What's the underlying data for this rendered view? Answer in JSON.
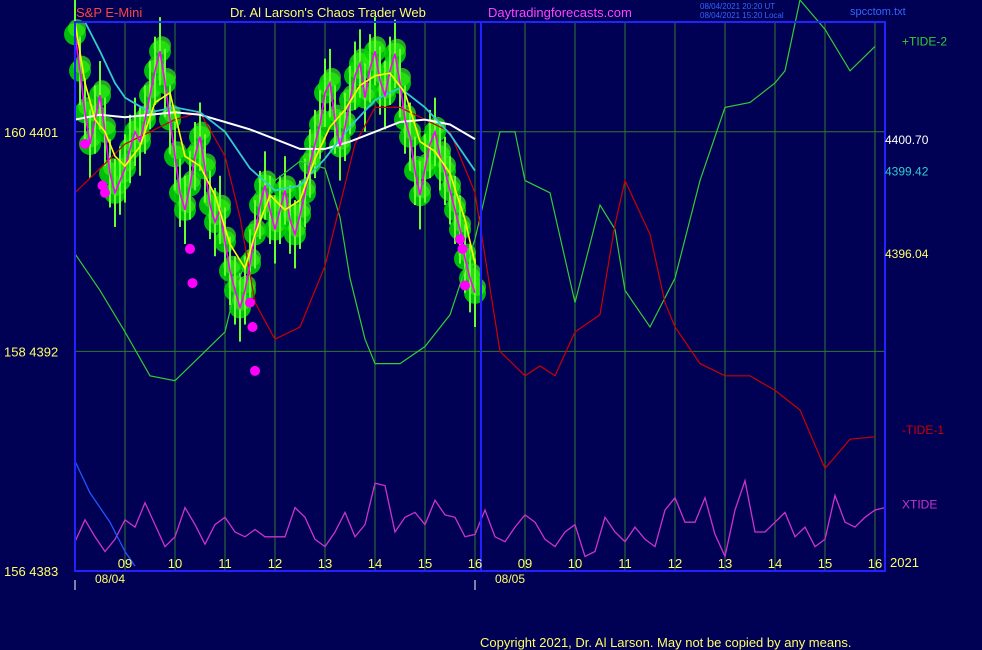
{
  "header": {
    "symbol": "S&P E-Mini",
    "title": "Dr. Al Larson's Chaos Trader Web",
    "site": "Daytradingforecasts.com",
    "stamp_line1": "08/04/2021 20:20 UT",
    "stamp_line2": "08/04/2021 15:20 Local",
    "filename": "spcctom.txt"
  },
  "footer": {
    "copyright": "Copyright 2021, Dr. Al Larson. May not be copied by any means."
  },
  "chart_data": {
    "type": "line",
    "colors": {
      "background": "#000055",
      "frame": "#2222ff",
      "grid": "#2e7a2e",
      "price": "#ff00ff",
      "fast_ma": "#ffff00",
      "mid_ma": "#33cccc",
      "slow_ma": "#ffffff",
      "tide_plus": "#33cc33",
      "tide_minus": "#cc0000",
      "xtide": "#cc33cc",
      "markers": "#ff00ff",
      "bands": "#00cc00",
      "tick_labels": "#ffff66"
    },
    "y_axis": {
      "ticks": [
        {
          "value": 4401,
          "label": "160  4401"
        },
        {
          "value": 4392,
          "label": "158  4392"
        },
        {
          "value": 4383,
          "label": "156  4383"
        }
      ],
      "ylim": [
        4383,
        4405.5
      ]
    },
    "x_axis": {
      "hour_labels": [
        "09",
        "10",
        "11",
        "12",
        "13",
        "14",
        "15",
        "16",
        "09",
        "10",
        "11",
        "12",
        "13",
        "14",
        "15",
        "16"
      ],
      "date_labels": [
        "08/04",
        "08/05"
      ],
      "year_label": "2021",
      "session_start_index": 8
    },
    "price_levels": [
      {
        "label": "4400.70",
        "value": 4400.7,
        "color": "#ffffff"
      },
      {
        "label": "4399.42",
        "value": 4399.42,
        "color": "#33cccc"
      },
      {
        "label": "4396.04",
        "value": 4396.04,
        "color": "#ffff66"
      }
    ],
    "series_labels": [
      {
        "label": "+TIDE-2",
        "color": "#33cc33"
      },
      {
        "label": "-TIDE-1",
        "color": "#cc0000"
      },
      {
        "label": "XTIDE",
        "color": "#cc33cc"
      }
    ],
    "x_range_hours": [
      8.0,
      24.2
    ],
    "price_series": {
      "x": [
        8.0,
        8.1,
        8.2,
        8.3,
        8.4,
        8.5,
        8.6,
        8.7,
        8.8,
        8.9,
        9.0,
        9.1,
        9.2,
        9.3,
        9.4,
        9.5,
        9.6,
        9.7,
        9.8,
        9.9,
        10.0,
        10.1,
        10.2,
        10.3,
        10.4,
        10.5,
        10.6,
        10.7,
        10.8,
        10.9,
        11.0,
        11.1,
        11.2,
        11.3,
        11.4,
        11.5,
        11.6,
        11.7,
        11.8,
        11.9,
        12.0,
        12.1,
        12.2,
        12.3,
        12.4,
        12.5,
        12.6,
        12.7,
        12.8,
        12.9,
        13.0,
        13.1,
        13.2,
        13.3,
        13.4,
        13.5,
        13.6,
        13.7,
        13.8,
        13.9,
        14.0,
        14.1,
        14.2,
        14.3,
        14.4,
        14.5,
        14.6,
        14.7,
        14.8,
        14.9,
        15.0,
        15.1,
        15.2,
        15.3,
        15.4,
        15.5,
        15.6,
        15.7,
        15.8,
        15.9,
        16.0
      ],
      "y": [
        4405,
        4403.5,
        4401.8,
        4400.5,
        4401.5,
        4402.5,
        4401.0,
        4399.3,
        4398.5,
        4399.0,
        4399.5,
        4400.3,
        4401.0,
        4400.6,
        4401.5,
        4402.5,
        4403.5,
        4404.3,
        4403.0,
        4401.5,
        4400.0,
        4398.5,
        4397.8,
        4398.8,
        4400.0,
        4400.8,
        4399.5,
        4398.0,
        4397.3,
        4397.8,
        4396.5,
        4395.3,
        4394.5,
        4393.8,
        4394.5,
        4395.6,
        4396.8,
        4398.0,
        4398.8,
        4397.8,
        4397.0,
        4397.8,
        4398.6,
        4397.4,
        4396.8,
        4397.6,
        4398.5,
        4399.7,
        4400.5,
        4401.3,
        4402.6,
        4403.0,
        4401.5,
        4400.4,
        4401.2,
        4402.3,
        4403.3,
        4403.8,
        4402.4,
        4403.6,
        4404.3,
        4403.1,
        4402.5,
        4403.5,
        4404.2,
        4403.0,
        4401.5,
        4400.8,
        4399.4,
        4398.4,
        4399.5,
        4400.5,
        4401.0,
        4400.0,
        4399.4,
        4398.6,
        4397.8,
        4397.0,
        4395.8,
        4395.0,
        4394.4
      ]
    },
    "fast_ma": {
      "x": [
        8.0,
        8.2,
        8.4,
        8.6,
        8.8,
        9.0,
        9.3,
        9.6,
        9.9,
        10.2,
        10.5,
        10.8,
        11.1,
        11.4,
        11.6,
        11.9,
        12.2,
        12.5,
        12.8,
        13.1,
        13.4,
        13.7,
        14.0,
        14.3,
        14.6,
        14.9,
        15.2,
        15.5,
        15.8,
        16.0
      ],
      "y": [
        4405.5,
        4403,
        4401.5,
        4401,
        4400,
        4399.6,
        4400.4,
        4402.2,
        4402.6,
        4400,
        4399.6,
        4398.4,
        4396.4,
        4395.4,
        4396.8,
        4398.4,
        4397.8,
        4398.2,
        4399.9,
        4401.2,
        4401.9,
        4402.9,
        4403.3,
        4403.4,
        4402.6,
        4400.6,
        4400.2,
        4399.3,
        4397.4,
        4395.6
      ]
    },
    "mid_ma": {
      "x": [
        8.2,
        8.5,
        8.8,
        9.0,
        9.5,
        10.0,
        10.5,
        11.0,
        11.5,
        12.0,
        12.5,
        13.0,
        13.5,
        14.0,
        14.5,
        15.0,
        15.5,
        16.0
      ],
      "y": [
        4405.5,
        4404.3,
        4403,
        4402.4,
        4401.8,
        4402,
        4401.8,
        4401,
        4399.5,
        4398.6,
        4398.8,
        4399.9,
        4401.2,
        4402.3,
        4402.8,
        4402,
        4400.9,
        4399.4
      ]
    },
    "slow_ma": {
      "x": [
        8.0,
        8.5,
        9.0,
        9.5,
        10.0,
        10.5,
        11.0,
        11.5,
        12.0,
        12.5,
        13.0,
        13.5,
        14.0,
        14.5,
        15.0,
        15.5,
        16.0
      ],
      "y": [
        4401.5,
        4401.7,
        4401.6,
        4401.7,
        4401.8,
        4401.7,
        4401.4,
        4401.1,
        4400.7,
        4400.3,
        4400.3,
        4400.6,
        4401.0,
        4401.4,
        4401.5,
        4401.3,
        4400.7
      ]
    },
    "markers": {
      "x": [
        8.2,
        8.55,
        8.6,
        10.3,
        10.35,
        11.5,
        11.55,
        11.6,
        15.7,
        15.75,
        15.8
      ],
      "y": [
        4400.5,
        4398.8,
        4398.5,
        4396.2,
        4394.8,
        4394.0,
        4393.0,
        4391.2,
        4396.6,
        4396.2,
        4394.7
      ]
    },
    "tide_plus": {
      "x": [
        8.0,
        8.5,
        9.0,
        9.5,
        10.0,
        10.5,
        11.0,
        11.2,
        11.5,
        11.8,
        12.0,
        12.5,
        13.0,
        13.3,
        13.5,
        13.8,
        14.0,
        14.5,
        15.0,
        15.5,
        16.0,
        16.5,
        16.8,
        17.0,
        17.5,
        18.0,
        18.5,
        18.8,
        19.0,
        19.5,
        20.0,
        20.5,
        21.0,
        21.5,
        22.0,
        22.2,
        22.5,
        23.0,
        23.5,
        24.0
      ],
      "y": [
        4396,
        4394.5,
        4392.8,
        4391,
        4390.8,
        4391.8,
        4392.8,
        4394.5,
        4396.2,
        4397.8,
        4399.0,
        4399.8,
        4399.5,
        4397.5,
        4395,
        4392.5,
        4391.5,
        4391.5,
        4392.2,
        4393.5,
        4396.6,
        4401,
        4401,
        4399,
        4398.5,
        4394,
        4398,
        4397,
        4394.5,
        4393,
        4395,
        4399,
        4402,
        4402.2,
        4403.0,
        4403.5,
        4406.4,
        4405.2,
        4403.5,
        4404.5
      ]
    },
    "tide_minus": {
      "x": [
        8.0,
        8.5,
        9.0,
        9.5,
        10.0,
        10.5,
        11.0,
        11.3,
        11.6,
        12.0,
        12.5,
        13.0,
        13.3,
        13.6,
        14.0,
        14.5,
        15.0,
        15.5,
        15.8,
        16.0,
        16.5,
        17.0,
        17.3,
        17.6,
        18.0,
        18.5,
        18.8,
        19.0,
        19.5,
        19.8,
        20.0,
        20.5,
        21.0,
        21.5,
        22.0,
        22.5,
        23.0,
        23.5,
        24.0
      ],
      "y": [
        4398.5,
        4399.5,
        4400.5,
        4401,
        4401.5,
        4401.8,
        4400,
        4397.5,
        4394,
        4392.5,
        4393,
        4395.5,
        4398,
        4400.5,
        4402,
        4402,
        4401.5,
        4401,
        4399.5,
        4398.5,
        4392,
        4391,
        4391.4,
        4391,
        4392.8,
        4393.5,
        4397.2,
        4399,
        4396.8,
        4394,
        4393,
        4391.5,
        4391,
        4391,
        4390.4,
        4389.6,
        4387.2,
        4388.4,
        4388.5
      ]
    },
    "xtide": {
      "x": [
        8.0,
        8.2,
        8.4,
        8.6,
        8.8,
        9.0,
        9.2,
        9.4,
        9.6,
        9.8,
        10.0,
        10.2,
        10.4,
        10.6,
        10.8,
        11.0,
        11.2,
        11.4,
        11.6,
        11.8,
        12.0,
        12.2,
        12.4,
        12.6,
        12.8,
        13.0,
        13.2,
        13.4,
        13.6,
        13.8,
        14.0,
        14.2,
        14.4,
        14.6,
        14.8,
        15.0,
        15.2,
        15.4,
        15.6,
        15.8,
        16.0,
        16.2,
        16.4,
        16.6,
        16.8,
        17.0,
        17.2,
        17.4,
        17.6,
        17.8,
        18.0,
        18.2,
        18.4,
        18.6,
        18.8,
        19.0,
        19.2,
        19.4,
        19.6,
        19.8,
        20.0,
        20.2,
        20.4,
        20.6,
        20.8,
        21.0,
        21.2,
        21.4,
        21.6,
        21.8,
        22.0,
        22.2,
        22.4,
        22.6,
        22.8,
        23.0,
        23.2,
        23.4,
        23.6,
        23.8,
        24.0,
        24.2
      ],
      "y": [
        4384.2,
        4385.1,
        4384.4,
        4383.8,
        4384.3,
        4385.1,
        4384.8,
        4385.8,
        4384.9,
        4384.0,
        4384.4,
        4385.6,
        4384.9,
        4384.1,
        4384.9,
        4385.2,
        4384.6,
        4384.4,
        4384.7,
        4384.4,
        4384.4,
        4384.4,
        4385.6,
        4385.2,
        4384.3,
        4384.0,
        4384.6,
        4385.4,
        4384.4,
        4384.9,
        4386.6,
        4386.5,
        4384.6,
        4385.2,
        4385.4,
        4384.9,
        4385.9,
        4385.3,
        4385.2,
        4384.4,
        4384.5,
        4385.5,
        4384.4,
        4384.2,
        4384.8,
        4385.3,
        4385.0,
        4384.3,
        4384.0,
        4384.6,
        4384.9,
        4383.6,
        4383.8,
        4385.2,
        4384.6,
        4384.2,
        4384.8,
        4384.3,
        4384.0,
        4385.5,
        4386.0,
        4385.0,
        4385.0,
        4386.0,
        4384.5,
        4383.6,
        4385.5,
        4386.7,
        4384.6,
        4384.6,
        4385.0,
        4385.4,
        4384.4,
        4384.8,
        4384.0,
        4384.3,
        4386.1,
        4385.0,
        4384.8,
        4385.2,
        4385.5,
        4385.6
      ]
    },
    "blue_curve": {
      "x": [
        8.0,
        8.3,
        8.7,
        9.0,
        9.2
      ],
      "y": [
        4387.5,
        4386.2,
        4385.0,
        4383.8,
        4383.2
      ]
    }
  }
}
